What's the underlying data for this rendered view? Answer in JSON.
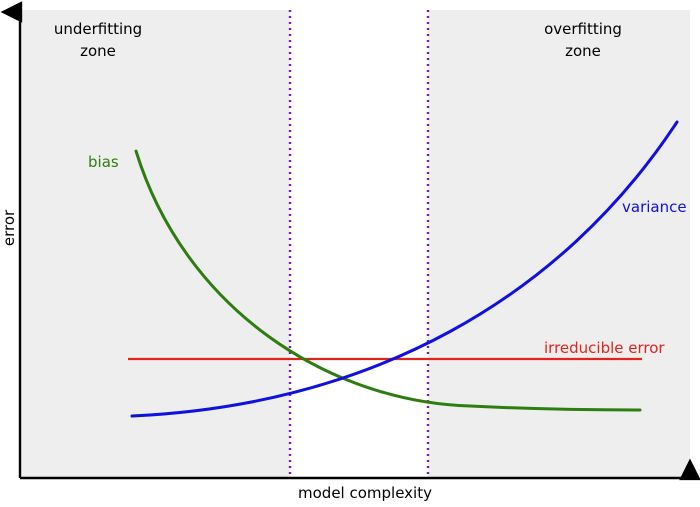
{
  "zones": {
    "underfitting_line1": "underfitting",
    "underfitting_line2": "zone",
    "overfitting_line1": "overfitting",
    "overfitting_line2": "zone"
  },
  "axes": {
    "xlabel": "model complexity",
    "ylabel": "error"
  },
  "curves": {
    "bias": "bias",
    "variance": "variance",
    "irreducible": "irreducible error"
  },
  "colors": {
    "zone_fill": "#eeeeee",
    "divider": "#7b1fa2",
    "bias": "#2e7d10",
    "variance": "#1010e0",
    "irreducible": "#e0241c",
    "axis": "#000000"
  }
}
